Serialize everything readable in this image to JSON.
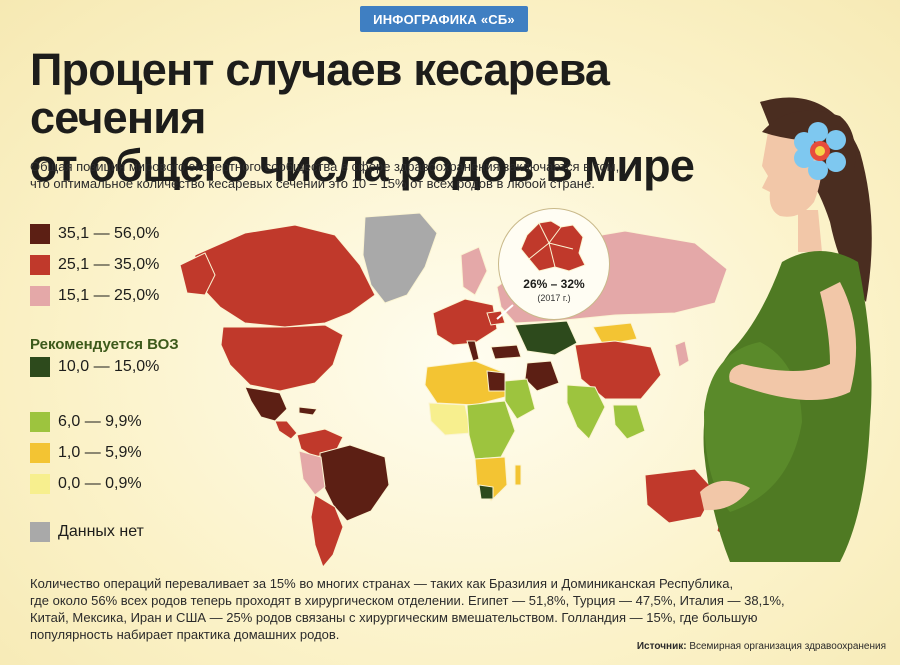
{
  "badge": "ИНФОГРАФИКА «СБ»",
  "title_line1": "Процент случаев кесарева сечения",
  "title_line2": "от общего числа родов в мире",
  "subtitle_line1": "Общая позиция мирового экспертного сообщества в сфере здравоохранения заключается в том,",
  "subtitle_line2": "что оптимальное количество кесаревых сечений это 10 – 15% от всех родов в любой стране.",
  "legend": {
    "items": [
      {
        "label": "35,1 — 56,0%",
        "color": "#5c1f14"
      },
      {
        "label": "25,1 — 35,0%",
        "color": "#c0392b"
      },
      {
        "label": "15,1 — 25,0%",
        "color": "#e4a8a8"
      },
      {
        "label": "10,0 — 15,0%",
        "color": "#2d4a1c"
      },
      {
        "label": "6,0 — 9,9%",
        "color": "#9dc43e"
      },
      {
        "label": "1,0 — 5,9%",
        "color": "#f3c433"
      },
      {
        "label": "0,0 — 0,9%",
        "color": "#f7ef8e"
      },
      {
        "label": "Данных нет",
        "color": "#a9a9a9"
      }
    ],
    "who_heading": "Рекомендуется ВОЗ"
  },
  "inset": {
    "range": "26% – 32%",
    "year": "(2017 г.)"
  },
  "bottom_text": {
    "line1": "Количество операций переваливает за 15% во многих странах — таких как Бразилия и Доминиканская Республика,",
    "line2": "где около 56% всех родов теперь проходят в хирургическом отделении.  Египет — 51,8%, Турция — 47,5%, Италия — 38,1%,",
    "line3": "Китай, Мексика, Иран и США — 25% родов связаны с хирургическим вмешательством. Голландия — 15%, где  большую",
    "line4": "популярность набирает практика домашних родов."
  },
  "source": {
    "label": "Источник:",
    "value": "Всемирная организация здравоохранения"
  }
}
